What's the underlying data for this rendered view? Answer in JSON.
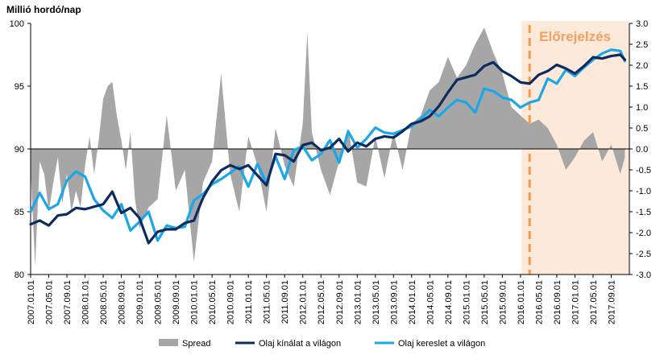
{
  "chart_data": {
    "type": "line",
    "ylabel": "Millió hordó/nap",
    "forecast_label": "Előrejelzés",
    "forecast_start": "2016.03.01",
    "forecast_end": "2018.01.01",
    "x_range": [
      "2007.01.01",
      "2018.01.01"
    ],
    "x_tick_labels": [
      "2007.01.01",
      "2007.05.01",
      "2007.09.01",
      "2008.01.01",
      "2008.05.01",
      "2008.09.01",
      "2009.01.01",
      "2009.05.01",
      "2009.09.01",
      "2010.01.01",
      "2010.05.01",
      "2010.09.01",
      "2011.01.01",
      "2011.05.01",
      "2011.09.01",
      "2012.01.01",
      "2012.05.01",
      "2012.09.01",
      "2013.01.01",
      "2013.05.01",
      "2013.09.01",
      "2014.01.01",
      "2014.05.01",
      "2014.09.01",
      "2015.01.01",
      "2015.05.01",
      "2015.09.01",
      "2016.01.01",
      "2016.05.01",
      "2016.09.01",
      "2017.01.01",
      "2017.05.01",
      "2017.09.01"
    ],
    "y_left": {
      "min": 80,
      "max": 100,
      "ticks": [
        "80",
        "85",
        "90",
        "95",
        "100"
      ]
    },
    "y_right": {
      "min": -3.0,
      "max": 3.0,
      "ticks": [
        "-3.0",
        "-2.5",
        "-2.0",
        "-1.5",
        "-1.0",
        "-0.5",
        "0.0",
        "0.5",
        "1.0",
        "1.5",
        "2.0",
        "2.5",
        "3.0"
      ]
    },
    "colors": {
      "spread": "#a6a6a6",
      "supply": "#0d2b5e",
      "demand": "#1aa7e8",
      "forecast_fill": "#fde9d9",
      "forecast_line": "#f29a4a"
    },
    "series": [
      {
        "name": "Spread",
        "axis": "right",
        "type": "area",
        "x": [
          "2007.01.01",
          "2007.02.01",
          "2007.03.01",
          "2007.04.01",
          "2007.05.01",
          "2007.06.01",
          "2007.07.01",
          "2007.08.01",
          "2007.09.01",
          "2007.10.01",
          "2007.11.01",
          "2007.12.01",
          "2008.01.01",
          "2008.02.01",
          "2008.03.01",
          "2008.04.01",
          "2008.05.01",
          "2008.06.01",
          "2008.07.01",
          "2008.08.01",
          "2008.09.01",
          "2008.10.01",
          "2008.11.01",
          "2008.12.01",
          "2009.01.01",
          "2009.03.01",
          "2009.05.01",
          "2009.07.01",
          "2009.09.01",
          "2009.11.01",
          "2010.01.01",
          "2010.03.01",
          "2010.05.01",
          "2010.07.01",
          "2010.09.01",
          "2010.11.01",
          "2011.01.01",
          "2011.03.01",
          "2011.05.01",
          "2011.07.01",
          "2011.09.01",
          "2011.11.01",
          "2012.01.01",
          "2012.02.01",
          "2012.03.01",
          "2012.05.01",
          "2012.07.01",
          "2012.09.01",
          "2012.11.01",
          "2013.01.01",
          "2013.03.01",
          "2013.05.01",
          "2013.07.01",
          "2013.09.01",
          "2013.11.01",
          "2014.01.01",
          "2014.03.01",
          "2014.05.01",
          "2014.07.01",
          "2014.09.01",
          "2014.11.01",
          "2015.01.01",
          "2015.03.01",
          "2015.05.01",
          "2015.07.01",
          "2015.09.01",
          "2015.11.01",
          "2016.01.01",
          "2016.03.01",
          "2016.05.01",
          "2016.07.01",
          "2016.09.01",
          "2016.11.01",
          "2017.01.01",
          "2017.03.01",
          "2017.05.01",
          "2017.07.01",
          "2017.09.01",
          "2017.11.01",
          "2017.12.01"
        ],
        "values": [
          -0.5,
          -2.8,
          -0.3,
          -0.6,
          -1.5,
          -0.8,
          -0.2,
          -1.3,
          -0.6,
          -1.5,
          -1.0,
          -1.4,
          -0.4,
          0.3,
          -0.6,
          0.2,
          1.2,
          1.5,
          1.6,
          0.8,
          0.2,
          -0.5,
          0.4,
          -1.2,
          -1.9,
          -1.4,
          -1.2,
          0.8,
          -1.0,
          -0.5,
          -2.7,
          -0.8,
          -0.3,
          1.8,
          -0.6,
          -1.5,
          0.3,
          -0.4,
          -1.5,
          0.5,
          -0.4,
          -0.9,
          0.6,
          2.8,
          0.4,
          -0.5,
          -1.1,
          -0.3,
          0.5,
          -0.8,
          -0.9,
          0.3,
          -0.7,
          0.4,
          -0.5,
          0.6,
          0.8,
          1.4,
          1.6,
          2.2,
          1.7,
          2.0,
          2.5,
          2.9,
          2.3,
          1.8,
          1.0,
          0.8,
          0.6,
          0.7,
          0.5,
          0.1,
          -0.5,
          -0.2,
          0.2,
          0.4,
          -0.3,
          0.1,
          -0.6,
          -0.2
        ]
      },
      {
        "name": "Olaj kínálat a világon",
        "axis": "left",
        "type": "line",
        "x": [
          "2007.01.01",
          "2007.03.01",
          "2007.05.01",
          "2007.07.01",
          "2007.09.01",
          "2007.11.01",
          "2008.01.01",
          "2008.03.01",
          "2008.05.01",
          "2008.07.01",
          "2008.09.01",
          "2008.11.01",
          "2009.01.01",
          "2009.03.01",
          "2009.05.01",
          "2009.07.01",
          "2009.09.01",
          "2009.11.01",
          "2010.01.01",
          "2010.03.01",
          "2010.05.01",
          "2010.07.01",
          "2010.09.01",
          "2010.11.01",
          "2011.01.01",
          "2011.03.01",
          "2011.05.01",
          "2011.07.01",
          "2011.09.01",
          "2011.11.01",
          "2012.01.01",
          "2012.03.01",
          "2012.05.01",
          "2012.07.01",
          "2012.09.01",
          "2012.11.01",
          "2013.01.01",
          "2013.03.01",
          "2013.05.01",
          "2013.07.01",
          "2013.09.01",
          "2013.11.01",
          "2014.01.01",
          "2014.03.01",
          "2014.05.01",
          "2014.07.01",
          "2014.09.01",
          "2014.11.01",
          "2015.01.01",
          "2015.03.01",
          "2015.05.01",
          "2015.07.01",
          "2015.09.01",
          "2015.11.01",
          "2016.01.01",
          "2016.03.01",
          "2016.05.01",
          "2016.07.01",
          "2016.09.01",
          "2016.11.01",
          "2017.01.01",
          "2017.03.01",
          "2017.05.01",
          "2017.07.01",
          "2017.09.01",
          "2017.11.01",
          "2017.12.01"
        ],
        "values": [
          84.0,
          84.3,
          83.9,
          84.7,
          84.8,
          85.3,
          85.2,
          85.4,
          85.6,
          86.6,
          84.9,
          85.3,
          84.5,
          82.5,
          83.4,
          83.6,
          83.6,
          84.1,
          84.3,
          86.1,
          87.4,
          88.3,
          88.7,
          88.4,
          88.7,
          87.9,
          87.1,
          89.6,
          89.5,
          89.0,
          90.3,
          90.5,
          89.9,
          90.1,
          90.8,
          89.8,
          90.5,
          90.2,
          90.8,
          91.0,
          90.9,
          91.4,
          92.0,
          92.2,
          92.6,
          93.4,
          94.5,
          95.5,
          95.7,
          95.9,
          96.6,
          96.9,
          96.2,
          95.8,
          95.3,
          95.2,
          95.9,
          96.2,
          96.7,
          96.4,
          96.0,
          96.6,
          97.3,
          97.2,
          97.4,
          97.5,
          97.1
        ]
      },
      {
        "name": "Olaj kereslet a világon",
        "axis": "left",
        "type": "line",
        "x": [
          "2007.01.01",
          "2007.03.01",
          "2007.05.01",
          "2007.07.01",
          "2007.09.01",
          "2007.11.01",
          "2008.01.01",
          "2008.03.01",
          "2008.05.01",
          "2008.07.01",
          "2008.09.01",
          "2008.11.01",
          "2009.01.01",
          "2009.03.01",
          "2009.05.01",
          "2009.07.01",
          "2009.09.01",
          "2009.11.01",
          "2010.01.01",
          "2010.03.01",
          "2010.05.01",
          "2010.07.01",
          "2010.09.01",
          "2010.11.01",
          "2011.01.01",
          "2011.03.01",
          "2011.05.01",
          "2011.07.01",
          "2011.09.01",
          "2011.11.01",
          "2012.01.01",
          "2012.03.01",
          "2012.05.01",
          "2012.07.01",
          "2012.09.01",
          "2012.11.01",
          "2013.01.01",
          "2013.03.01",
          "2013.05.01",
          "2013.07.01",
          "2013.09.01",
          "2013.11.01",
          "2014.01.01",
          "2014.03.01",
          "2014.05.01",
          "2014.07.01",
          "2014.09.01",
          "2014.11.01",
          "2015.01.01",
          "2015.03.01",
          "2015.05.01",
          "2015.07.01",
          "2015.09.01",
          "2015.11.01",
          "2016.01.01",
          "2016.03.01",
          "2016.05.01",
          "2016.07.01",
          "2016.09.01",
          "2016.11.01",
          "2017.01.01",
          "2017.03.01",
          "2017.05.01",
          "2017.07.01",
          "2017.09.01",
          "2017.11.01",
          "2017.12.01"
        ],
        "values": [
          85.0,
          86.5,
          85.2,
          85.6,
          87.5,
          88.2,
          87.8,
          86.0,
          85.1,
          84.5,
          85.6,
          83.5,
          84.2,
          85.0,
          82.7,
          83.9,
          83.7,
          83.8,
          85.9,
          86.4,
          87.2,
          87.6,
          88.1,
          88.6,
          87.0,
          88.8,
          87.3,
          89.4,
          87.6,
          89.9,
          90.2,
          89.1,
          89.6,
          90.7,
          88.9,
          91.4,
          90.1,
          90.8,
          91.7,
          91.3,
          91.2,
          91.5,
          91.8,
          92.4,
          93.1,
          92.6,
          93.3,
          93.9,
          93.7,
          92.9,
          94.8,
          94.6,
          94.1,
          93.9,
          93.3,
          93.7,
          93.9,
          95.6,
          95.2,
          96.3,
          95.8,
          96.5,
          97.1,
          97.6,
          97.9,
          97.8,
          97.0
        ]
      }
    ],
    "legend": {
      "placement": "bottom"
    }
  }
}
